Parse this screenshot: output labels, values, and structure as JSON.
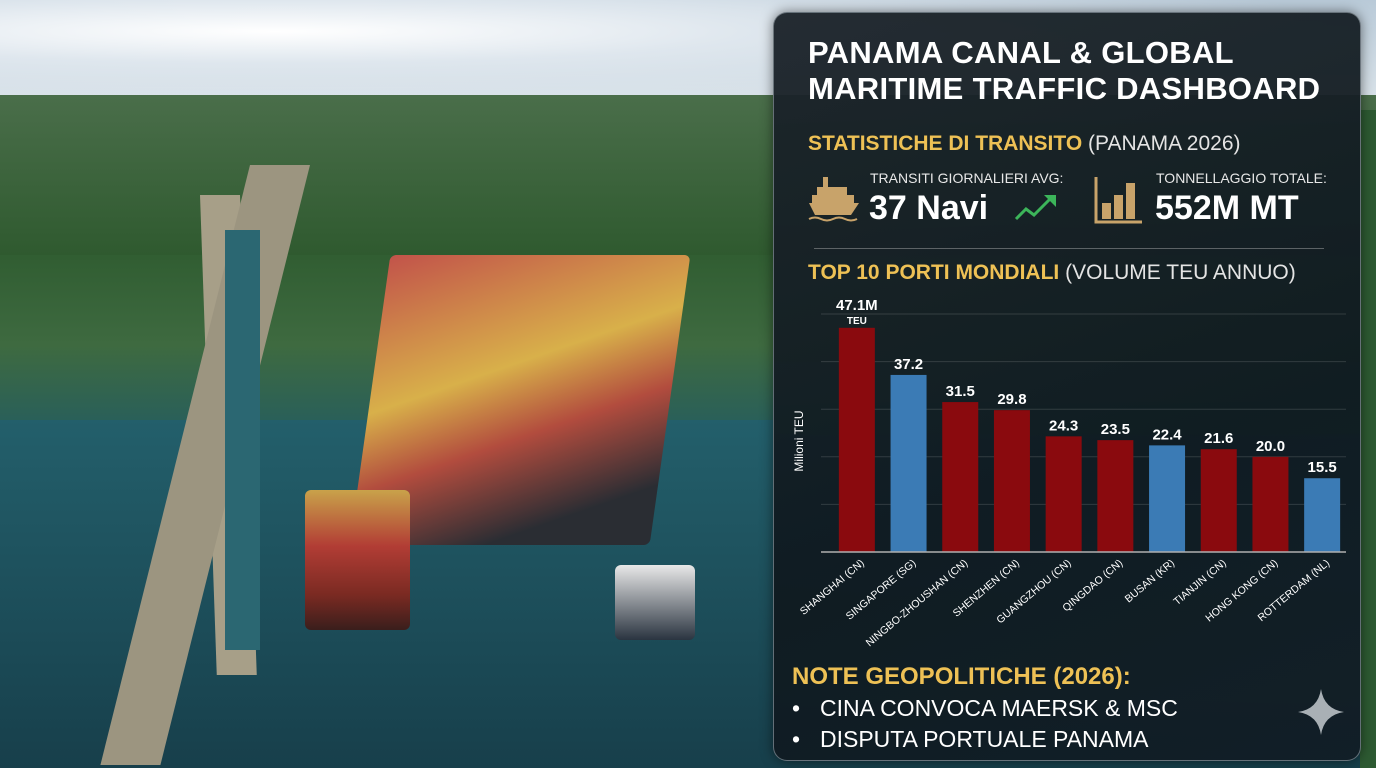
{
  "title_line1": "PANAMA CANAL & GLOBAL",
  "title_line2": "MARITIME TRAFFIC DASHBOARD",
  "transit": {
    "heading": "STATISTICHE DI TRANSITO",
    "heading_sub": "(PANAMA 2026)",
    "daily_label": "TRANSITI GIORNALIERI AVG:",
    "daily_value": "37 Navi",
    "tonnage_label": "TONNELLAGGIO TOTALE:",
    "tonnage_value": "552M MT",
    "icons": [
      "ship-icon",
      "trend-up-icon",
      "bar-chart-icon"
    ],
    "trend_color": "#3cb55a",
    "icon_color": "#c8a36a"
  },
  "chart_data": {
    "type": "bar",
    "title": "TOP 10 PORTI MONDIALI",
    "subtitle": "(VOLUME TEU ANNUO)",
    "ylabel": "Milioni TEU",
    "ylim": [
      0,
      50
    ],
    "grid": true,
    "categories": [
      "SHANGHAI (CN)",
      "SINGAPORE (SG)",
      "NINGBO-ZHOUSHAN (CN)",
      "SHENZHEN (CN)",
      "GUANGZHOU (CN)",
      "QINGDAO (CN)",
      "BUSAN (KR)",
      "TIANJIN (CN)",
      "HONG KONG (CN)",
      "ROTTERDAM (NL)"
    ],
    "values": [
      47.1,
      37.2,
      31.5,
      29.8,
      24.3,
      23.5,
      22.4,
      21.6,
      20.0,
      15.5
    ],
    "data_labels": [
      "47.1M",
      "37.2",
      "31.5",
      "29.8",
      "24.3",
      "23.5",
      "22.4",
      "21.6",
      "20.0",
      "15.5"
    ],
    "first_label_unit": "TEU",
    "colors": [
      "#8a0a0e",
      "#3b7bb5",
      "#8a0a0e",
      "#8a0a0e",
      "#8a0a0e",
      "#8a0a0e",
      "#3b7bb5",
      "#8a0a0e",
      "#8a0a0e",
      "#3b7bb5"
    ]
  },
  "notes": {
    "heading": "NOTE GEOPOLITICHE (2026):",
    "items": [
      "CINA CONVOCA MAERSK & MSC",
      "DISPUTA PORTUALE PANAMA"
    ]
  }
}
